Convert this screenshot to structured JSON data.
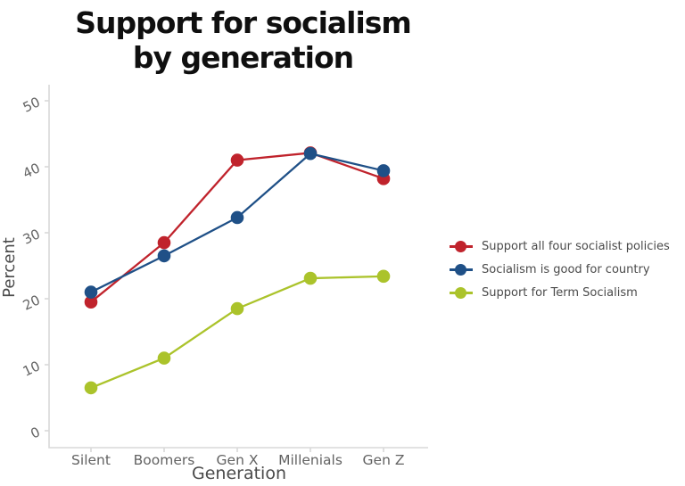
{
  "chart_data": {
    "type": "line",
    "title": "Support for socialism by generation",
    "title_lines": [
      "Support for socialism",
      "by generation"
    ],
    "xlabel": "Generation",
    "ylabel": "Percent",
    "categories": [
      "Silent",
      "Boomers",
      "Gen X",
      "Millenials",
      "Gen Z"
    ],
    "series": [
      {
        "name": "Support all four socialist policies",
        "color": "#c0232c",
        "values": [
          19.5,
          28.5,
          41,
          42.1,
          38.2
        ]
      },
      {
        "name": "Socialism is good for country",
        "color": "#1f5087",
        "values": [
          21,
          26.5,
          32.3,
          42,
          39.4
        ]
      },
      {
        "name": "Support for Term Socialism",
        "color": "#abc32b",
        "values": [
          6.5,
          11,
          18.5,
          23.1,
          23.4
        ]
      }
    ],
    "ylim": [
      0,
      50
    ],
    "yticks": [
      0,
      10,
      20,
      30,
      40,
      50
    ],
    "grid": false,
    "legend_position": "right"
  },
  "colors": {
    "background": "#ffffff",
    "axis_line": "#d9d9d9",
    "tick_label": "#636363",
    "axis_title": "#4a4a4a",
    "title_text": "#0f0f0f",
    "legend_text": "#4a4a4a"
  }
}
